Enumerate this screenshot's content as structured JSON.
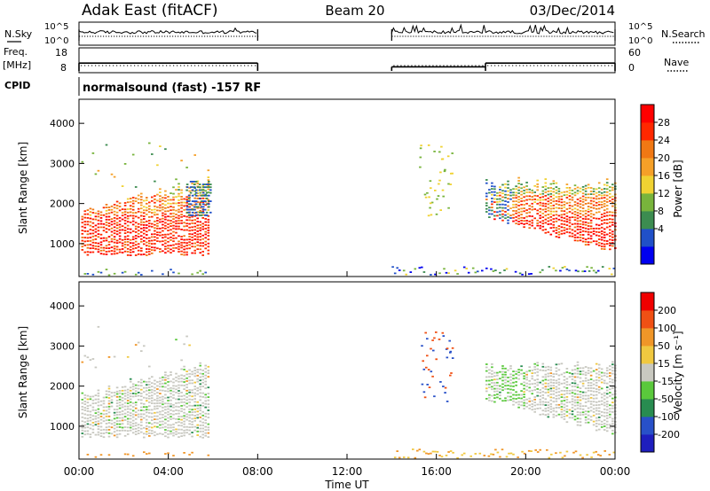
{
  "header": {
    "site": "Adak East (fitACF)",
    "beam": "Beam 20",
    "date": "03/Dec/2014"
  },
  "side_labels": {
    "nsky": "N.Sky",
    "freq": "Freq.",
    "freq_unit": "[MHz]",
    "cpid": "CPID",
    "nsearch": "N.Search",
    "nave": "Nave"
  },
  "cpid_text": "normalsound (fast) -157 RF",
  "chart_data": [
    {
      "type": "line",
      "name": "noise-panel",
      "y_left_ticks": [
        "10^5",
        "10^0"
      ],
      "y_right_ticks": [
        "10^5",
        "10^0"
      ],
      "segments_hours": [
        [
          0,
          8
        ],
        [
          14,
          24
        ]
      ]
    },
    {
      "type": "line",
      "name": "freq-nave-panel",
      "y_left_ticks": [
        "18",
        "8"
      ],
      "y_right_ticks": [
        "60",
        "0"
      ],
      "freq_segments_mhz": [
        {
          "x": [
            0,
            8
          ],
          "value": 13.2
        },
        {
          "x": [
            14,
            18.2
          ],
          "value": 10.7
        },
        {
          "x": [
            18.2,
            24
          ],
          "value": 13.2
        }
      ]
    },
    {
      "type": "heatmap",
      "name": "power",
      "ylabel": "Slant Range [km]",
      "ylim": [
        180,
        4600
      ],
      "xlim": [
        0,
        24
      ],
      "y_ticks": [
        1000,
        2000,
        3000,
        4000
      ],
      "colorbar": {
        "label": "Power [dB]",
        "ticks": [
          "28",
          "24",
          "20",
          "16",
          "12",
          "8",
          "4"
        ],
        "colors": [
          "#0000f0",
          "#2050c8",
          "#3c8c50",
          "#78b43c",
          "#f0d232",
          "#f5a028",
          "#f07814",
          "#ff2800",
          "#ff0000"
        ]
      }
    },
    {
      "type": "heatmap",
      "name": "velocity",
      "ylabel": "Slant Range [km]",
      "xlabel": "Time UT",
      "ylim": [
        180,
        4600
      ],
      "xlim": [
        0,
        24
      ],
      "y_ticks": [
        1000,
        2000,
        3000,
        4000
      ],
      "x_ticks": [
        "00:00",
        "04:00",
        "08:00",
        "12:00",
        "16:00",
        "20:00",
        "00:00"
      ],
      "colorbar": {
        "label": "Velocity [m s⁻¹]",
        "ticks": [
          "200",
          "100",
          "50",
          "15",
          "-15",
          "-50",
          "-100",
          "-200"
        ],
        "colors": [
          "#1e1ebe",
          "#2850c8",
          "#288c50",
          "#5ac83c",
          "#c8c8c0",
          "#f0c840",
          "#f09628",
          "#f05014",
          "#f00000"
        ]
      }
    }
  ]
}
